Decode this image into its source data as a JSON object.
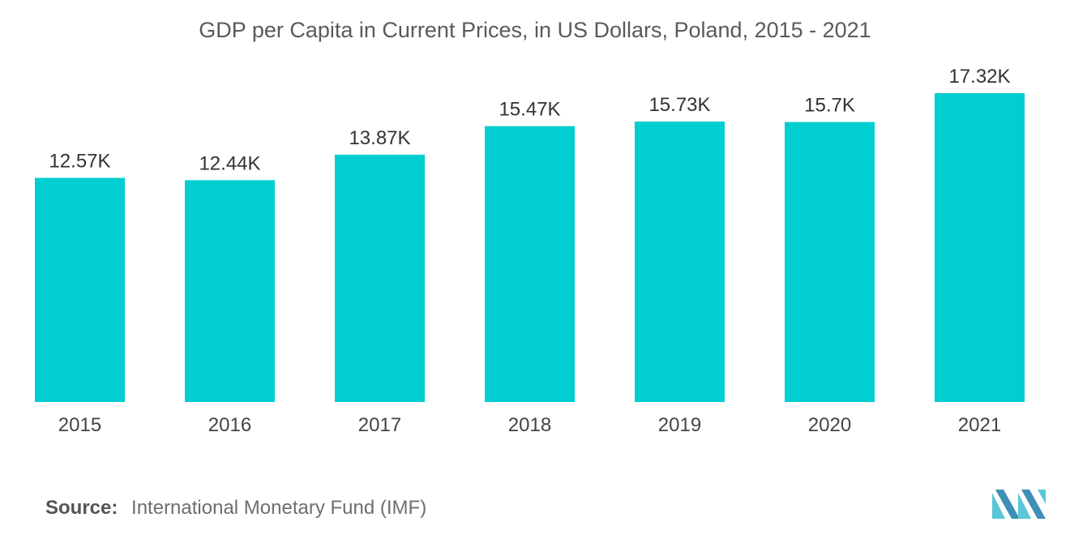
{
  "chart_data": {
    "type": "bar",
    "title": "GDP per Capita in Current Prices, in US Dollars, Poland, 2015 - 2021",
    "categories": [
      "2015",
      "2016",
      "2017",
      "2018",
      "2019",
      "2020",
      "2021"
    ],
    "values": [
      12.57,
      12.44,
      13.87,
      15.47,
      15.73,
      15.7,
      17.32
    ],
    "value_labels": [
      "12.57K",
      "12.44K",
      "13.87K",
      "15.47K",
      "15.73K",
      "15.7K",
      "17.32K"
    ],
    "xlabel": "",
    "ylabel": "",
    "ylim": [
      0,
      20
    ],
    "grid": false,
    "legend": "none",
    "bar_color": "#00ced1"
  },
  "source": {
    "label": "Source:",
    "text": "International Monetary Fund (IMF)"
  },
  "colors": {
    "bar": "#00ced1",
    "logo_dark": "#3d8fb5",
    "logo_light": "#59c7d8"
  }
}
